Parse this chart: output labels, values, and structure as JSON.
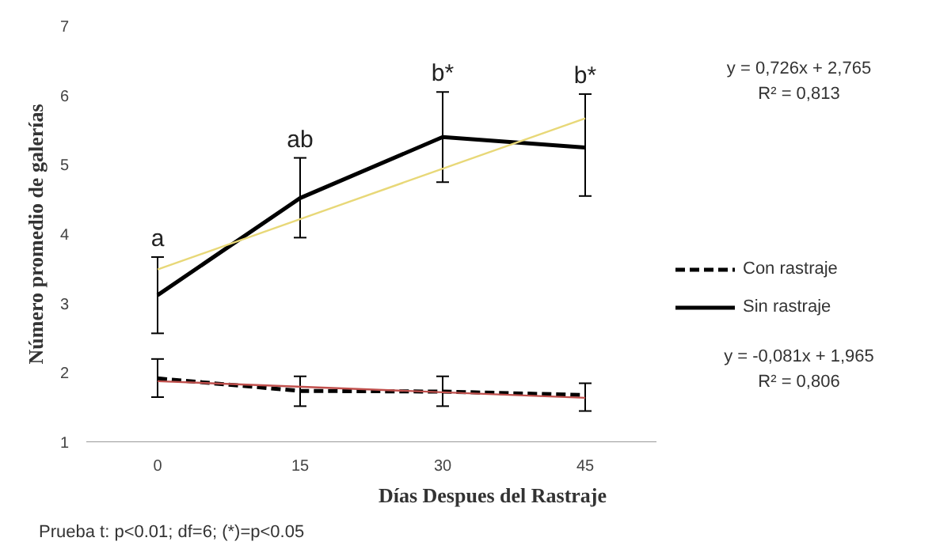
{
  "chart_data": {
    "type": "line",
    "xlabel": "Días Despues del Rastraje",
    "ylabel": "Número promedio de galerías",
    "categories": [
      "0",
      "15",
      "30",
      "45"
    ],
    "ylim": [
      1,
      7
    ],
    "yticks": [
      1,
      2,
      3,
      4,
      5,
      6,
      7
    ],
    "grid": false,
    "legend": "right",
    "marker": "none",
    "series": [
      {
        "name": "Con rastraje",
        "color": "#000000",
        "line_style": "dashed",
        "values": [
          1.92,
          1.74,
          1.73,
          1.68
        ],
        "errors": [
          [
            1.65,
            2.2
          ],
          [
            1.52,
            1.95
          ],
          [
            1.52,
            1.95
          ],
          [
            1.45,
            1.85
          ]
        ]
      },
      {
        "name": "Sin rastraje",
        "color": "#000000",
        "line_style": "solid",
        "values": [
          3.12,
          4.52,
          5.4,
          5.25
        ],
        "errors": [
          [
            2.57,
            3.67
          ],
          [
            3.95,
            5.1
          ],
          [
            4.75,
            6.05
          ],
          [
            4.55,
            6.02
          ]
        ]
      },
      {
        "type": "line",
        "color": "#e8d878",
        "line_style": "solid",
        "x": [
          "0",
          "45"
        ],
        "values": [
          3.49,
          5.67
        ]
      },
      {
        "type": "line",
        "color": "#c0504d",
        "line_style": "solid",
        "x": [
          "0",
          "45"
        ],
        "values": [
          1.88,
          1.64
        ]
      }
    ],
    "annotations": [
      {
        "text": "a",
        "x": "0",
        "y": 3.67
      },
      {
        "text": "ab",
        "x": "15",
        "y": 5.1
      },
      {
        "text": "b*",
        "x": "30",
        "y": 6.05
      },
      {
        "text": "b*",
        "x": "45",
        "y": 6.02
      },
      "y = 0,726x + 2,765",
      "R² = 0,813",
      "y = -0,081x + 1,965",
      "R² = 0,806",
      "Prueba t: p<0.01; df=6; (*)=p<0.05"
    ]
  }
}
